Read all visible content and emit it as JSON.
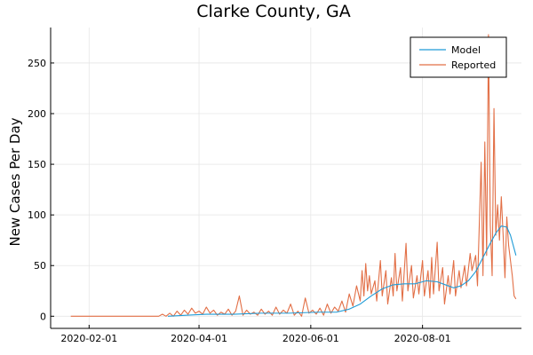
{
  "chart_data": {
    "type": "line",
    "title": "Clarke County, GA",
    "xlabel": "",
    "ylabel": "New Cases Per Day",
    "x_axis": {
      "type": "date",
      "range": [
        "2020-01-11",
        "2020-09-24"
      ],
      "ticks": [
        "2020-02-01",
        "2020-04-01",
        "2020-06-01",
        "2020-08-01"
      ]
    },
    "ylim": [
      -12,
      285
    ],
    "y_ticks": [
      0,
      50,
      100,
      150,
      200,
      250
    ],
    "grid": true,
    "legend_position": "top-right",
    "series": [
      {
        "name": "Model",
        "color": "#1f9bd7",
        "points": [
          [
            "2020-03-15",
            0
          ],
          [
            "2020-03-25",
            1
          ],
          [
            "2020-04-05",
            2
          ],
          [
            "2020-04-20",
            2
          ],
          [
            "2020-05-05",
            3
          ],
          [
            "2020-05-20",
            3
          ],
          [
            "2020-06-05",
            4
          ],
          [
            "2020-06-15",
            4
          ],
          [
            "2020-06-22",
            7
          ],
          [
            "2020-06-28",
            12
          ],
          [
            "2020-07-04",
            20
          ],
          [
            "2020-07-10",
            27
          ],
          [
            "2020-07-16",
            31
          ],
          [
            "2020-07-22",
            32
          ],
          [
            "2020-07-28",
            32
          ],
          [
            "2020-08-03",
            35
          ],
          [
            "2020-08-09",
            34
          ],
          [
            "2020-08-15",
            30
          ],
          [
            "2020-08-18",
            28
          ],
          [
            "2020-08-22",
            30
          ],
          [
            "2020-08-26",
            35
          ],
          [
            "2020-08-30",
            44
          ],
          [
            "2020-09-03",
            58
          ],
          [
            "2020-09-07",
            72
          ],
          [
            "2020-09-10",
            82
          ],
          [
            "2020-09-13",
            89
          ],
          [
            "2020-09-16",
            88
          ],
          [
            "2020-09-18",
            80
          ],
          [
            "2020-09-21",
            60
          ]
        ]
      },
      {
        "name": "Reported",
        "color": "#e26f46",
        "points": [
          [
            "2020-01-22",
            0
          ],
          [
            "2020-03-10",
            0
          ],
          [
            "2020-03-12",
            2
          ],
          [
            "2020-03-14",
            0
          ],
          [
            "2020-03-16",
            3
          ],
          [
            "2020-03-18",
            0
          ],
          [
            "2020-03-20",
            5
          ],
          [
            "2020-03-22",
            1
          ],
          [
            "2020-03-24",
            6
          ],
          [
            "2020-03-26",
            2
          ],
          [
            "2020-03-28",
            8
          ],
          [
            "2020-03-30",
            3
          ],
          [
            "2020-04-01",
            5
          ],
          [
            "2020-04-03",
            2
          ],
          [
            "2020-04-05",
            9
          ],
          [
            "2020-04-07",
            3
          ],
          [
            "2020-04-09",
            6
          ],
          [
            "2020-04-11",
            1
          ],
          [
            "2020-04-13",
            4
          ],
          [
            "2020-04-15",
            2
          ],
          [
            "2020-04-17",
            7
          ],
          [
            "2020-04-19",
            1
          ],
          [
            "2020-04-21",
            5
          ],
          [
            "2020-04-23",
            20
          ],
          [
            "2020-04-25",
            1
          ],
          [
            "2020-04-27",
            6
          ],
          [
            "2020-04-29",
            2
          ],
          [
            "2020-05-01",
            4
          ],
          [
            "2020-05-03",
            1
          ],
          [
            "2020-05-05",
            7
          ],
          [
            "2020-05-07",
            2
          ],
          [
            "2020-05-09",
            5
          ],
          [
            "2020-05-11",
            1
          ],
          [
            "2020-05-13",
            9
          ],
          [
            "2020-05-15",
            2
          ],
          [
            "2020-05-17",
            6
          ],
          [
            "2020-05-19",
            3
          ],
          [
            "2020-05-21",
            12
          ],
          [
            "2020-05-23",
            1
          ],
          [
            "2020-05-25",
            5
          ],
          [
            "2020-05-27",
            0
          ],
          [
            "2020-05-29",
            18
          ],
          [
            "2020-05-31",
            3
          ],
          [
            "2020-06-02",
            6
          ],
          [
            "2020-06-04",
            2
          ],
          [
            "2020-06-06",
            8
          ],
          [
            "2020-06-08",
            1
          ],
          [
            "2020-06-10",
            12
          ],
          [
            "2020-06-12",
            3
          ],
          [
            "2020-06-14",
            9
          ],
          [
            "2020-06-16",
            5
          ],
          [
            "2020-06-18",
            15
          ],
          [
            "2020-06-20",
            4
          ],
          [
            "2020-06-22",
            22
          ],
          [
            "2020-06-24",
            10
          ],
          [
            "2020-06-26",
            30
          ],
          [
            "2020-06-28",
            15
          ],
          [
            "2020-06-29",
            45
          ],
          [
            "2020-06-30",
            20
          ],
          [
            "2020-07-01",
            52
          ],
          [
            "2020-07-02",
            25
          ],
          [
            "2020-07-03",
            40
          ],
          [
            "2020-07-04",
            22
          ],
          [
            "2020-07-06",
            35
          ],
          [
            "2020-07-07",
            15
          ],
          [
            "2020-07-09",
            55
          ],
          [
            "2020-07-10",
            20
          ],
          [
            "2020-07-12",
            45
          ],
          [
            "2020-07-13",
            12
          ],
          [
            "2020-07-15",
            38
          ],
          [
            "2020-07-16",
            20
          ],
          [
            "2020-07-17",
            62
          ],
          [
            "2020-07-18",
            25
          ],
          [
            "2020-07-20",
            48
          ],
          [
            "2020-07-21",
            15
          ],
          [
            "2020-07-23",
            72
          ],
          [
            "2020-07-24",
            25
          ],
          [
            "2020-07-26",
            50
          ],
          [
            "2020-07-27",
            18
          ],
          [
            "2020-07-29",
            40
          ],
          [
            "2020-07-30",
            22
          ],
          [
            "2020-08-01",
            55
          ],
          [
            "2020-08-02",
            20
          ],
          [
            "2020-08-04",
            45
          ],
          [
            "2020-08-05",
            18
          ],
          [
            "2020-08-06",
            58
          ],
          [
            "2020-08-07",
            22
          ],
          [
            "2020-08-09",
            73
          ],
          [
            "2020-08-10",
            25
          ],
          [
            "2020-08-12",
            48
          ],
          [
            "2020-08-13",
            12
          ],
          [
            "2020-08-15",
            40
          ],
          [
            "2020-08-16",
            22
          ],
          [
            "2020-08-18",
            55
          ],
          [
            "2020-08-19",
            20
          ],
          [
            "2020-08-21",
            45
          ],
          [
            "2020-08-22",
            28
          ],
          [
            "2020-08-24",
            50
          ],
          [
            "2020-08-25",
            30
          ],
          [
            "2020-08-27",
            62
          ],
          [
            "2020-08-28",
            45
          ],
          [
            "2020-08-30",
            60
          ],
          [
            "2020-08-31",
            30
          ],
          [
            "2020-09-02",
            152
          ],
          [
            "2020-09-03",
            40
          ],
          [
            "2020-09-04",
            172
          ],
          [
            "2020-09-05",
            60
          ],
          [
            "2020-09-06",
            278
          ],
          [
            "2020-09-07",
            90
          ],
          [
            "2020-09-08",
            40
          ],
          [
            "2020-09-09",
            205
          ],
          [
            "2020-09-10",
            80
          ],
          [
            "2020-09-11",
            110
          ],
          [
            "2020-09-12",
            75
          ],
          [
            "2020-09-13",
            118
          ],
          [
            "2020-09-14",
            80
          ],
          [
            "2020-09-15",
            38
          ],
          [
            "2020-09-16",
            98
          ],
          [
            "2020-09-17",
            70
          ],
          [
            "2020-09-18",
            55
          ],
          [
            "2020-09-19",
            40
          ],
          [
            "2020-09-20",
            20
          ],
          [
            "2020-09-21",
            17
          ]
        ]
      }
    ]
  }
}
